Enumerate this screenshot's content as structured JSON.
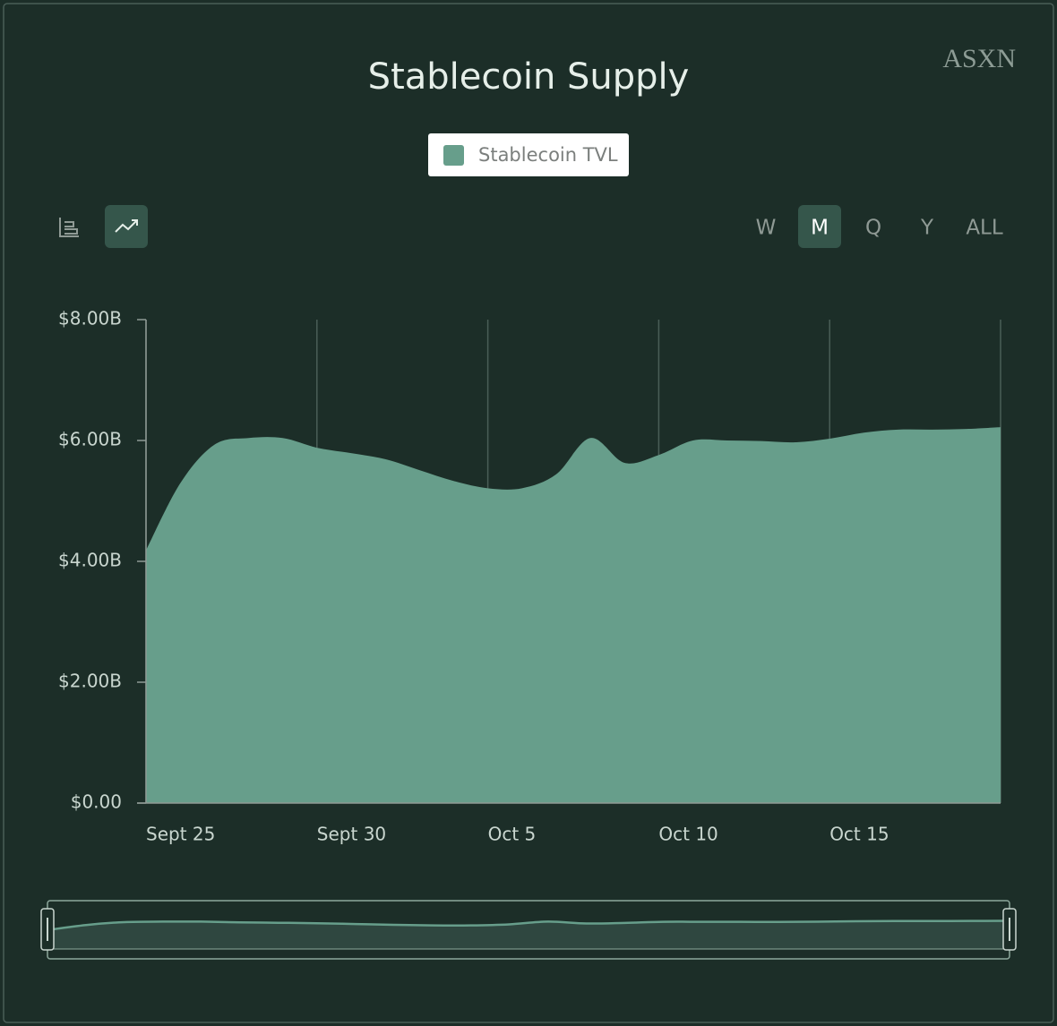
{
  "chart_data": {
    "type": "area",
    "title": "Stablecoin Supply",
    "watermark": "ASXN",
    "categories": [
      "Sept 25",
      null,
      null,
      null,
      null,
      "Sept 30",
      null,
      null,
      null,
      null,
      "Oct 5",
      null,
      null,
      null,
      null,
      "Oct 10",
      null,
      null,
      null,
      null,
      "Oct 15",
      null,
      null,
      null,
      null,
      null
    ],
    "series": [
      {
        "name": "Stablecoin TVL",
        "color": "#679e8b",
        "values": [
          4180000000,
          5290000000,
          5930000000,
          6040000000,
          6040000000,
          5880000000,
          5790000000,
          5690000000,
          5510000000,
          5330000000,
          5210000000,
          5210000000,
          5440000000,
          6040000000,
          5630000000,
          5760000000,
          6000000000,
          6000000000,
          5990000000,
          5970000000,
          6030000000,
          6130000000,
          6180000000,
          6180000000,
          6190000000,
          6220000000
        ]
      }
    ],
    "ylim": [
      0,
      8000000000
    ],
    "yticks": [
      {
        "value": 0,
        "label": "$0.00"
      },
      {
        "value": 2000000000,
        "label": "$2.00B"
      },
      {
        "value": 4000000000,
        "label": "$4.00B"
      },
      {
        "value": 6000000000,
        "label": "$6.00B"
      },
      {
        "value": 8000000000,
        "label": "$8.00B"
      }
    ],
    "grid": true,
    "legend": "top"
  },
  "controls": {
    "ranges": [
      "W",
      "M",
      "Q",
      "Y",
      "ALL"
    ],
    "active_range": 1
  }
}
